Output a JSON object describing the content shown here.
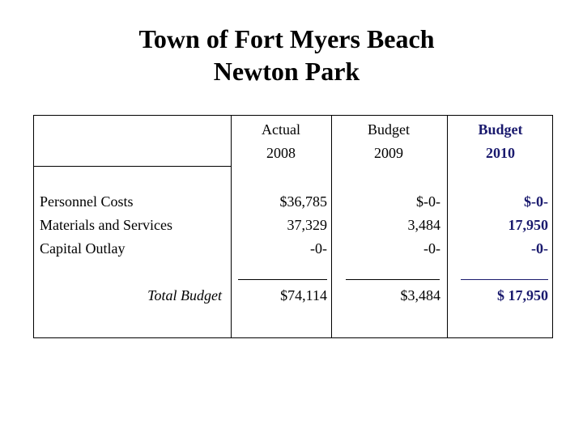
{
  "title": {
    "line1": "Town of Fort Myers Beach",
    "line2": "Newton Park"
  },
  "columns": [
    {
      "label": "Actual",
      "year": "2008"
    },
    {
      "label": "Budget",
      "year": "2009"
    },
    {
      "label": "Budget",
      "year": "2010"
    }
  ],
  "rows": [
    {
      "label": "Personnel Costs",
      "values": [
        "$36,785",
        "$-0-",
        "$-0-"
      ]
    },
    {
      "label": "Materials and Services",
      "values": [
        "37,329",
        "3,484",
        "17,950"
      ]
    },
    {
      "label": "Capital Outlay",
      "values": [
        "-0-",
        "-0-",
        "-0-"
      ]
    }
  ],
  "total": {
    "label": "Total Budget",
    "values": [
      "$74,114",
      "$3,484",
      "$ 17,950"
    ]
  },
  "colors": {
    "highlight": "#1a1a6e"
  }
}
